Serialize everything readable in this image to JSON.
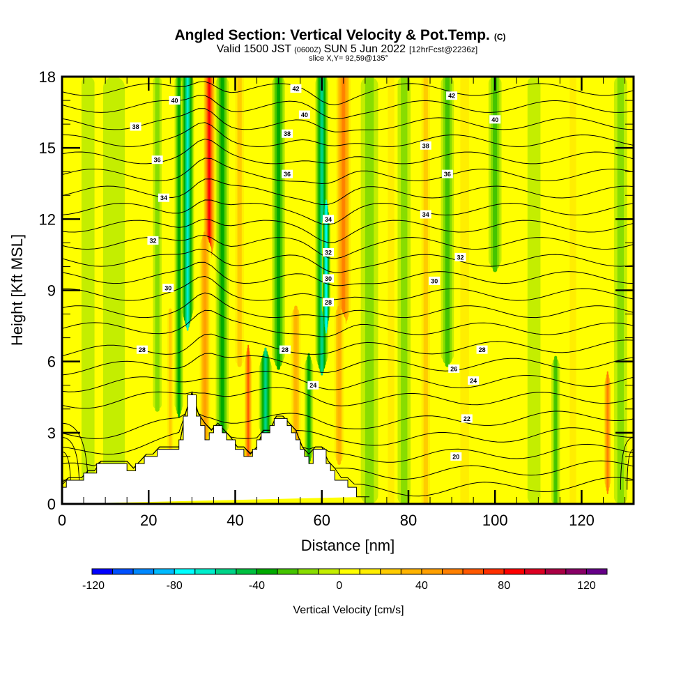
{
  "title": {
    "main": "Angled Section: Vertical Velocity & Pot.Temp.",
    "main_unit": "(C)",
    "valid_prefix": "Valid 1500 JST",
    "valid_utc": "(0600Z)",
    "valid_date": "SUN 5 Jun 2022",
    "forecast": "[12hrFcst@2236z]",
    "slice": "slice X,Y= 92,59@135°"
  },
  "chart_data": {
    "type": "heatmap",
    "title": "Angled Section: Vertical Velocity & Pot.Temp. (C)",
    "xlabel": "Distance [nm]",
    "ylabel": "Height [Kft MSL]",
    "xlim": [
      0,
      132
    ],
    "ylim": [
      0,
      18
    ],
    "x_ticks": [
      0,
      20,
      40,
      60,
      80,
      100,
      120
    ],
    "x_tick_labels": [
      "0",
      "20",
      "40",
      "60",
      "80",
      "100",
      "120"
    ],
    "x_minor_step": 5,
    "y_ticks": [
      0,
      3,
      6,
      9,
      12,
      15,
      18
    ],
    "y_tick_labels": [
      "0",
      "3",
      "6",
      "9",
      "12",
      "15",
      "18"
    ],
    "y_minor_step": 1,
    "colorbar": {
      "label": "Vertical Velocity [cm/s]",
      "levels": [
        -120,
        -110,
        -100,
        -90,
        -80,
        -70,
        -60,
        -50,
        -40,
        -30,
        -20,
        -10,
        0,
        10,
        20,
        30,
        40,
        50,
        60,
        70,
        80,
        90,
        100,
        110,
        120,
        130
      ],
      "tick_values": [
        -120,
        -80,
        -40,
        0,
        40,
        80,
        120
      ],
      "tick_labels": [
        "-120",
        "-80",
        "-40",
        "0",
        "40",
        "80",
        "120"
      ],
      "colors": [
        "#0000ff",
        "#0050ff",
        "#0088ff",
        "#00bbff",
        "#00ffff",
        "#00eecc",
        "#00d488",
        "#00c040",
        "#00aa00",
        "#44c400",
        "#88dd00",
        "#c4ee00",
        "#ffff00",
        "#ffee00",
        "#ffcc00",
        "#ffb400",
        "#ffa000",
        "#ff8000",
        "#ff5800",
        "#ff3000",
        "#ff0000",
        "#dd0022",
        "#aa0044",
        "#880066",
        "#660088"
      ],
      "placement": "bottom"
    },
    "velocity_bands": [
      {
        "x": 6,
        "w": 3,
        "v": -10,
        "ybot": 0,
        "ytop": 18
      },
      {
        "x": 12,
        "w": 5,
        "v": -10,
        "ybot": 0,
        "ytop": 18
      },
      {
        "x": 19,
        "w": 3,
        "v": 10,
        "ybot": 2,
        "ytop": 18
      },
      {
        "x": 22,
        "w": 2,
        "v": -20,
        "ybot": 4,
        "ytop": 18
      },
      {
        "x": 25,
        "w": 2,
        "v": 30,
        "ybot": 2,
        "ytop": 8
      },
      {
        "x": 27,
        "w": 2,
        "v": -40,
        "ybot": 4,
        "ytop": 18
      },
      {
        "x": 29,
        "w": 3,
        "v": -70,
        "ybot": 8,
        "ytop": 18
      },
      {
        "x": 34,
        "w": 3,
        "v": 90,
        "ybot": 11,
        "ytop": 18
      },
      {
        "x": 33,
        "w": 3,
        "v": 50,
        "ybot": 3,
        "ytop": 11
      },
      {
        "x": 37,
        "w": 3,
        "v": -40,
        "ybot": 3,
        "ytop": 18
      },
      {
        "x": 43,
        "w": 2,
        "v": 70,
        "ybot": 2,
        "ytop": 6
      },
      {
        "x": 41,
        "w": 3,
        "v": 30,
        "ybot": 6,
        "ytop": 18
      },
      {
        "x": 47,
        "w": 3,
        "v": -60,
        "ybot": 3,
        "ytop": 6
      },
      {
        "x": 50,
        "w": 3,
        "v": -40,
        "ybot": 6,
        "ytop": 18
      },
      {
        "x": 54,
        "w": 3,
        "v": 40,
        "ybot": 2,
        "ytop": 8
      },
      {
        "x": 57,
        "w": 2,
        "v": -40,
        "ybot": 2,
        "ytop": 6
      },
      {
        "x": 60,
        "w": 3,
        "v": -60,
        "ybot": 6,
        "ytop": 18
      },
      {
        "x": 61,
        "w": 2,
        "v": -80,
        "ybot": 8,
        "ytop": 12
      },
      {
        "x": 65,
        "w": 4,
        "v": 60,
        "ybot": 8,
        "ytop": 18
      },
      {
        "x": 64,
        "w": 3,
        "v": 40,
        "ybot": 2,
        "ytop": 8
      },
      {
        "x": 71,
        "w": 4,
        "v": -20,
        "ybot": 0,
        "ytop": 18
      },
      {
        "x": 76,
        "w": 3,
        "v": 20,
        "ybot": 0,
        "ytop": 18
      },
      {
        "x": 79,
        "w": 3,
        "v": -20,
        "ybot": 0,
        "ytop": 18
      },
      {
        "x": 84,
        "w": 3,
        "v": 30,
        "ybot": 0,
        "ytop": 18
      },
      {
        "x": 89,
        "w": 3,
        "v": -30,
        "ybot": 6,
        "ytop": 18
      },
      {
        "x": 93,
        "w": 4,
        "v": 20,
        "ybot": 0,
        "ytop": 18
      },
      {
        "x": 100,
        "w": 3,
        "v": -30,
        "ybot": 10,
        "ytop": 18
      },
      {
        "x": 104,
        "w": 4,
        "v": 10,
        "ybot": 0,
        "ytop": 18
      },
      {
        "x": 109,
        "w": 3,
        "v": -10,
        "ybot": 0,
        "ytop": 18
      },
      {
        "x": 114,
        "w": 2,
        "v": -30,
        "ybot": 0,
        "ytop": 6
      },
      {
        "x": 118,
        "w": 3,
        "v": 20,
        "ybot": 0,
        "ytop": 18
      },
      {
        "x": 126,
        "w": 2,
        "v": 60,
        "ybot": 1,
        "ytop": 5
      },
      {
        "x": 129,
        "w": 3,
        "v": -20,
        "ybot": 0,
        "ytop": 18
      }
    ],
    "terrain": {
      "x": [
        0,
        1,
        1,
        5,
        5,
        8,
        8,
        15,
        15,
        17,
        17,
        19,
        19,
        22,
        22,
        27,
        27,
        28,
        28,
        29,
        29,
        31,
        31,
        32,
        32,
        33,
        33,
        34,
        34,
        35,
        35,
        37,
        37,
        38,
        38,
        40,
        40,
        42,
        42,
        44,
        44,
        45,
        45,
        46,
        46,
        48,
        48,
        49,
        49,
        52,
        52,
        53,
        53,
        54,
        54,
        55,
        55,
        56,
        56,
        57,
        57,
        58,
        58,
        61,
        61,
        62,
        62,
        63,
        63,
        66,
        66,
        68,
        68,
        71,
        71,
        132
      ],
      "y": [
        0.7,
        0.7,
        1.0,
        1.0,
        1.3,
        1.3,
        1.7,
        1.7,
        1.4,
        1.4,
        1.7,
        1.7,
        2.0,
        2.0,
        2.3,
        2.3,
        2.7,
        2.7,
        3.7,
        3.7,
        4.6,
        4.6,
        3.7,
        3.7,
        3.3,
        3.3,
        2.7,
        2.7,
        3.0,
        3.0,
        3.3,
        3.3,
        3.0,
        3.0,
        2.7,
        2.7,
        2.3,
        2.3,
        2.0,
        2.0,
        2.3,
        2.3,
        2.7,
        2.7,
        3.0,
        3.0,
        3.3,
        3.3,
        3.6,
        3.6,
        3.3,
        3.3,
        3.0,
        3.0,
        2.7,
        2.7,
        2.3,
        2.3,
        2.0,
        2.0,
        1.7,
        1.7,
        2.3,
        2.3,
        1.7,
        1.7,
        1.4,
        1.4,
        1.0,
        1.0,
        0.7,
        0.7,
        0.3,
        0.3,
        0.3
      ]
    },
    "theta_contour_labels": [
      {
        "value": "42",
        "x": 54,
        "y": 17.5
      },
      {
        "value": "42",
        "x": 90,
        "y": 17.2
      },
      {
        "value": "40",
        "x": 26,
        "y": 17.0
      },
      {
        "value": "40",
        "x": 56,
        "y": 16.4
      },
      {
        "value": "40",
        "x": 100,
        "y": 16.2
      },
      {
        "value": "38",
        "x": 17,
        "y": 15.9
      },
      {
        "value": "38",
        "x": 52,
        "y": 15.6
      },
      {
        "value": "38",
        "x": 84,
        "y": 15.1
      },
      {
        "value": "36",
        "x": 22,
        "y": 14.5
      },
      {
        "value": "36",
        "x": 52,
        "y": 13.9
      },
      {
        "value": "36",
        "x": 89,
        "y": 13.9
      },
      {
        "value": "34",
        "x": 23.5,
        "y": 12.9
      },
      {
        "value": "34",
        "x": 61.5,
        "y": 12.0
      },
      {
        "value": "34",
        "x": 84,
        "y": 12.2
      },
      {
        "value": "32",
        "x": 21,
        "y": 11.1
      },
      {
        "value": "32",
        "x": 61.5,
        "y": 10.6
      },
      {
        "value": "32",
        "x": 92,
        "y": 10.4
      },
      {
        "value": "30",
        "x": 24.5,
        "y": 9.1
      },
      {
        "value": "30",
        "x": 61.5,
        "y": 9.5
      },
      {
        "value": "30",
        "x": 86,
        "y": 9.4
      },
      {
        "value": "28",
        "x": 61.5,
        "y": 8.5
      },
      {
        "value": "28",
        "x": 18.5,
        "y": 6.5
      },
      {
        "value": "28",
        "x": 51.5,
        "y": 6.5
      },
      {
        "value": "28",
        "x": 97,
        "y": 6.5
      },
      {
        "value": "26",
        "x": 90.5,
        "y": 5.7
      },
      {
        "value": "24",
        "x": 58,
        "y": 5.0
      },
      {
        "value": "24",
        "x": 95,
        "y": 5.2
      },
      {
        "value": "22",
        "x": 93.5,
        "y": 3.6
      },
      {
        "value": "20",
        "x": 91,
        "y": 2.0
      }
    ]
  }
}
